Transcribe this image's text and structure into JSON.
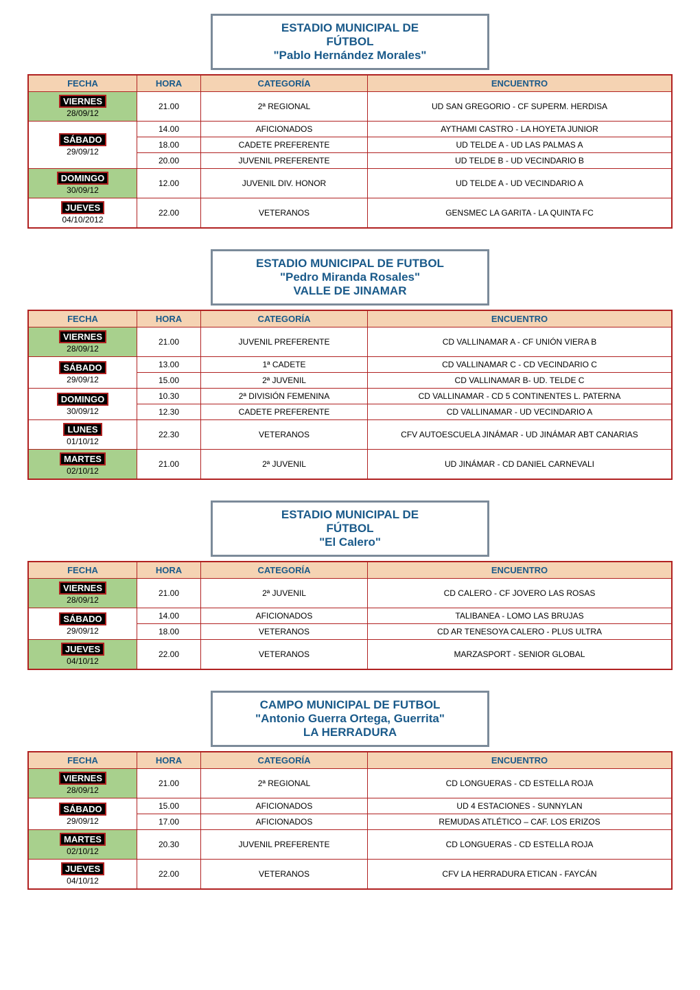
{
  "colors": {
    "title_text": "#1a5a8a",
    "title_border": "#7b8a99",
    "header_bg": "#f5d3b3",
    "header_text": "#1a5a8a",
    "table_border": "#b02020",
    "badge_bg": "#000000",
    "badge_border": "#b02020",
    "badge_text": "#ffffff",
    "green_bg": "#a8d08d",
    "cell_text": "#000000"
  },
  "headers": {
    "fecha": "FECHA",
    "hora": "HORA",
    "categoria": "CATEGORÍA",
    "encuentro": "ENCUENTRO"
  },
  "stadiums": [
    {
      "title_lines": [
        "ESTADIO MUNICIPAL DE",
        "FÚTBOL",
        "\"Pablo Hernández Morales\""
      ],
      "groups": [
        {
          "day": "VIERNES",
          "date": "28/09/12",
          "green": true,
          "rows": [
            {
              "hora": "21.00",
              "categoria": "2ª REGIONAL",
              "encuentro": "UD SAN GREGORIO - CF SUPERM. HERDISA"
            }
          ]
        },
        {
          "day": "SÁBADO",
          "date": "29/09/12",
          "green": false,
          "rows": [
            {
              "hora": "14.00",
              "categoria": "AFICIONADOS",
              "encuentro": "AYTHAMI CASTRO - LA HOYETA JUNIOR"
            },
            {
              "hora": "18.00",
              "categoria": "CADETE PREFERENTE",
              "encuentro": "UD TELDE A - UD LAS PALMAS A"
            },
            {
              "hora": "20.00",
              "categoria": "JUVENIL PREFERENTE",
              "encuentro": "UD TELDE B - UD VECINDARIO B"
            }
          ]
        },
        {
          "day": "DOMINGO",
          "date": "30/09/12",
          "green": true,
          "rows": [
            {
              "hora": "12.00",
              "categoria": "JUVENIL DIV. HONOR",
              "encuentro": "UD TELDE A - UD VECINDARIO A"
            }
          ]
        },
        {
          "day": "JUEVES",
          "date": "04/10/2012",
          "green": false,
          "rows": [
            {
              "hora": "22.00",
              "categoria": "VETERANOS",
              "encuentro": "GENSMEC LA GARITA  - LA QUINTA FC"
            }
          ]
        }
      ]
    },
    {
      "title_lines": [
        "ESTADIO MUNICIPAL DE FUTBOL",
        "\"Pedro Miranda Rosales\"",
        "VALLE DE JINAMAR"
      ],
      "groups": [
        {
          "day": "VIERNES",
          "date": "28/09/12",
          "green": true,
          "rows": [
            {
              "hora": "21.00",
              "categoria": "JUVENIL PREFERENTE",
              "encuentro": "CD VALLINAMAR A - CF UNIÓN VIERA B"
            }
          ]
        },
        {
          "day": "SÁBADO",
          "date": "29/09/12",
          "green": false,
          "rows": [
            {
              "hora": "13.00",
              "categoria": "1ª CADETE",
              "encuentro": "CD VALLINAMAR C - CD VECINDARIO C"
            },
            {
              "hora": "15.00",
              "categoria": "2ª JUVENIL",
              "encuentro": "CD VALLINAMAR B- UD. TELDE C"
            }
          ]
        },
        {
          "day": "DOMINGO",
          "date": "30/09/12",
          "green": false,
          "rows": [
            {
              "hora": "10.30",
              "categoria": "2ª DIVISIÓN FEMENINA",
              "encuentro": "CD VALLINAMAR -  CD 5 CONTINENTES L. PATERNA"
            },
            {
              "hora": "12.30",
              "categoria": "CADETE PREFERENTE",
              "encuentro": "CD VALLINAMAR -  UD VECINDARIO A"
            }
          ]
        },
        {
          "day": "LUNES",
          "date": "01/10/12",
          "green": false,
          "rows": [
            {
              "hora": "22.30",
              "categoria": "VETERANOS",
              "encuentro": "CFV AUTOESCUELA JINÁMAR - UD JINÁMAR ABT CANARIAS"
            }
          ]
        },
        {
          "day": "MARTES",
          "date": "02/10/12",
          "green": true,
          "rows": [
            {
              "hora": "21.00",
              "categoria": "2ª JUVENIL",
              "encuentro": "UD JINÁMAR - CD DANIEL CARNEVALI"
            }
          ]
        }
      ]
    },
    {
      "title_lines": [
        "ESTADIO MUNICIPAL DE",
        "FÚTBOL",
        "\"El Calero\""
      ],
      "groups": [
        {
          "day": "VIERNES",
          "date": "28/09/12",
          "green": true,
          "rows": [
            {
              "hora": "21.00",
              "categoria": "2ª JUVENIL",
              "encuentro": "CD CALERO - CF JOVERO LAS ROSAS"
            }
          ]
        },
        {
          "day": "SÁBADO",
          "date": "29/09/12",
          "green": false,
          "rows": [
            {
              "hora": "14.00",
              "categoria": "AFICIONADOS",
              "encuentro": "TALIBANEA - LOMO LAS BRUJAS"
            },
            {
              "hora": "18.00",
              "categoria": "VETERANOS",
              "encuentro": "CD AR TENESOYA CALERO -  PLUS ULTRA"
            }
          ]
        },
        {
          "day": "JUEVES",
          "date": "04/10/12",
          "green": true,
          "rows": [
            {
              "hora": "22.00",
              "categoria": "VETERANOS",
              "encuentro": "MARZASPORT  - SENIOR GLOBAL"
            }
          ]
        }
      ]
    },
    {
      "title_lines": [
        "CAMPO MUNICIPAL DE FUTBOL",
        "\"Antonio Guerra Ortega, Guerrita\"",
        "LA HERRADURA"
      ],
      "groups": [
        {
          "day": "VIERNES",
          "date": "28/09/12",
          "green": true,
          "rows": [
            {
              "hora": "21.00",
              "categoria": "2ª REGIONAL",
              "encuentro": "CD LONGUERAS - CD ESTELLA ROJA"
            }
          ]
        },
        {
          "day": "SÁBADO",
          "date": "29/09/12",
          "green": false,
          "rows": [
            {
              "hora": "15.00",
              "categoria": "AFICIONADOS",
              "encuentro": "UD 4 ESTACIONES - SUNNYLAN"
            },
            {
              "hora": "17.00",
              "categoria": "AFICIONADOS",
              "encuentro": "REMUDAS ATLÉTICO – CAF. LOS ERIZOS"
            }
          ]
        },
        {
          "day": "MARTES",
          "date": "02/10/12",
          "green": true,
          "rows": [
            {
              "hora": "20.30",
              "categoria": "JUVENIL PREFERENTE",
              "encuentro": "CD LONGUERAS - CD ESTELLA ROJA"
            }
          ]
        },
        {
          "day": "JUEVES",
          "date": "04/10/12",
          "green": false,
          "rows": [
            {
              "hora": "22.00",
              "categoria": "VETERANOS",
              "encuentro": "CFV LA HERRADURA ETICAN - FAYCÁN"
            }
          ]
        }
      ]
    }
  ]
}
